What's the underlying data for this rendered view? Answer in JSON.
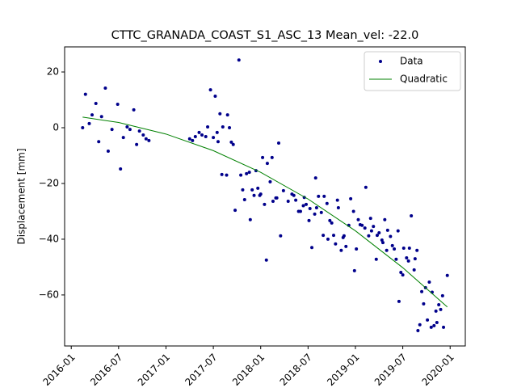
{
  "chart_data": {
    "type": "scatter",
    "title": "CTTC_GRANADA_COAST_S1_ASC_13     Mean_vel: -22.0",
    "ylabel": "Displacement [mm]",
    "xlim": [
      2015.93,
      2020.16
    ],
    "ylim": [
      -78.3,
      29
    ],
    "xticks": [
      {
        "value": 2016.0,
        "label": "2016-01"
      },
      {
        "value": 2016.5,
        "label": "2016-07"
      },
      {
        "value": 2017.0,
        "label": "2017-01"
      },
      {
        "value": 2017.5,
        "label": "2017-07"
      },
      {
        "value": 2018.0,
        "label": "2018-01"
      },
      {
        "value": 2018.5,
        "label": "2018-07"
      },
      {
        "value": 2019.0,
        "label": "2019-01"
      },
      {
        "value": 2019.5,
        "label": "2019-07"
      },
      {
        "value": 2020.0,
        "label": "2020-01"
      }
    ],
    "yticks": [
      {
        "value": -60,
        "label": "−60"
      },
      {
        "value": -40,
        "label": "−40"
      },
      {
        "value": -20,
        "label": "−20"
      },
      0,
      20
    ],
    "grid": false,
    "legend": "upper right",
    "series": [
      {
        "name": "Data",
        "color": "#00008b",
        "type": "scatter",
        "x": [
          2016.12,
          2016.15,
          2016.19,
          2016.22,
          2016.26,
          2016.29,
          2016.32,
          2016.36,
          2016.39,
          2016.43,
          2016.49,
          2016.52,
          2016.55,
          2016.59,
          2016.62,
          2016.66,
          2016.69,
          2016.72,
          2016.76,
          2016.79,
          2016.82,
          2017.25,
          2017.28,
          2017.31,
          2017.35,
          2017.38,
          2017.42,
          2017.44,
          2017.47,
          2017.5,
          2017.52,
          2017.54,
          2017.55,
          2017.57,
          2017.59,
          2017.6,
          2017.64,
          2017.65,
          2017.67,
          2017.69,
          2017.71,
          2017.73,
          2017.77,
          2017.79,
          2017.81,
          2017.83,
          2017.85,
          2017.88,
          2017.89,
          2017.91,
          2017.93,
          2017.95,
          2017.97,
          2017.99,
          2018.0,
          2018.02,
          2018.04,
          2018.06,
          2018.07,
          2018.1,
          2018.12,
          2018.13,
          2018.16,
          2018.17,
          2018.19,
          2018.21,
          2018.24,
          2018.29,
          2018.33,
          2018.35,
          2018.37,
          2018.4,
          2018.42,
          2018.45,
          2018.46,
          2018.48,
          2018.51,
          2018.52,
          2018.54,
          2018.57,
          2018.58,
          2018.59,
          2018.61,
          2018.64,
          2018.66,
          2018.67,
          2018.7,
          2018.71,
          2018.73,
          2018.75,
          2018.77,
          2018.79,
          2018.81,
          2018.82,
          2018.85,
          2018.87,
          2018.88,
          2018.9,
          2018.93,
          2018.95,
          2018.98,
          2018.99,
          2019.01,
          2019.03,
          2019.05,
          2019.07,
          2019.1,
          2019.11,
          2019.14,
          2019.16,
          2019.17,
          2019.19,
          2019.22,
          2019.23,
          2019.25,
          2019.28,
          2019.29,
          2019.31,
          2019.33,
          2019.34,
          2019.37,
          2019.39,
          2019.41,
          2019.43,
          2019.45,
          2019.46,
          2019.48,
          2019.5,
          2019.51,
          2019.54,
          2019.56,
          2019.57,
          2019.59,
          2019.62,
          2019.63,
          2019.65,
          2019.66,
          2019.68,
          2019.7,
          2019.72,
          2019.74,
          2019.76,
          2019.78,
          2019.8,
          2019.81,
          2019.83,
          2019.85,
          2019.86,
          2019.88,
          2019.9,
          2019.92,
          2019.93,
          2019.97
        ],
        "values": [
          0,
          12,
          1.5,
          4.6,
          8.7,
          -5,
          4,
          14.2,
          -8.4,
          -0.6,
          8.4,
          -14.8,
          -3.5,
          0.3,
          -0.6,
          6.4,
          -6,
          -1.2,
          -2.6,
          -4,
          -4.6,
          -4,
          -4.6,
          -3.2,
          -1.7,
          -2.6,
          -3.2,
          0.3,
          13.6,
          -3.5,
          11.3,
          -1.7,
          -5,
          5,
          -16.8,
          0.3,
          -17,
          4.6,
          0,
          -5.2,
          -6,
          -29.6,
          24.3,
          -17,
          -22.3,
          -25.8,
          -16.5,
          -16,
          -33,
          -22.3,
          -24.3,
          -15.4,
          -21.7,
          -24.3,
          -23.8,
          -10.7,
          -27.5,
          -47.5,
          -12.8,
          -19.4,
          -10.7,
          -26.4,
          -25.2,
          -25.2,
          -5.5,
          -38.8,
          -22.6,
          -26.4,
          -23.8,
          -24.3,
          -26,
          -30,
          -30,
          -28,
          -25,
          -27.5,
          -33.3,
          -29,
          -43,
          -31,
          -18,
          -28.7,
          -24.6,
          -30.4,
          -38.6,
          -24.6,
          -27.2,
          -40,
          -33.3,
          -34.2,
          -38.6,
          -41.7,
          -26,
          -28.7,
          -44,
          -39.4,
          -38.8,
          -42.6,
          -35,
          -25.5,
          -30,
          -51.3,
          -43.5,
          -33,
          -34.8,
          -35,
          -36,
          -21.4,
          -38.8,
          -32.5,
          -37,
          -35.4,
          -47.2,
          -38.6,
          -37.7,
          -40.3,
          -41.2,
          -33,
          -44,
          -36.8,
          -39,
          -42.3,
          -43.5,
          -47.2,
          -37,
          -62.3,
          -51.9,
          -52.8,
          -43.2,
          -46.7,
          -47.8,
          -43.2,
          -31.6,
          -51,
          -47,
          -44,
          -72.8,
          -70.7,
          -58.8,
          -63.2,
          -57.4,
          -69,
          -55.4,
          -71.6,
          -59,
          -71,
          -65.8,
          -69.9,
          -63.5,
          -65.2,
          -60.3,
          -71.6,
          -53
        ]
      },
      {
        "name": "Quadratic",
        "color": "#008000",
        "type": "line",
        "x": [
          2016.12,
          2016.5,
          2017.0,
          2017.5,
          2018.0,
          2018.5,
          2019.0,
          2019.5,
          2019.97
        ],
        "values": [
          3.8,
          1.87,
          -2.27,
          -8.23,
          -16.0,
          -25.59,
          -37.0,
          -50.22,
          -64.3
        ]
      }
    ]
  }
}
